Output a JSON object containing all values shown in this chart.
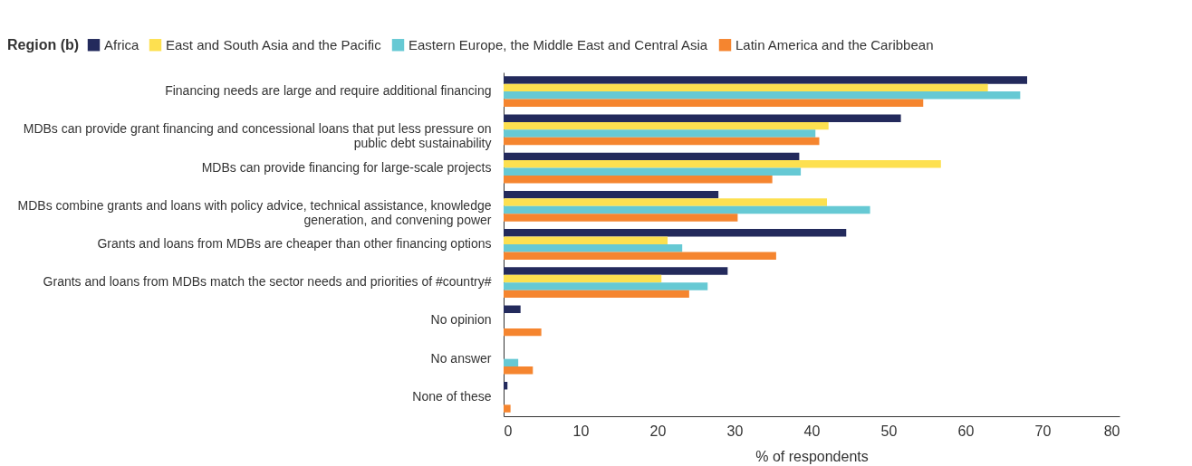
{
  "chart_data": {
    "type": "bar",
    "orientation": "horizontal",
    "legend_title": "Region (b)",
    "legend": "top left",
    "xlabel": "% of respondents",
    "xlim": [
      0,
      80
    ],
    "xticks": [
      0,
      10,
      20,
      30,
      40,
      50,
      60,
      70,
      80
    ],
    "grid": false,
    "categories": [
      "Financing needs are large and require additional financing",
      "MDBs can provide grant financing and concessional loans that put less pressure on public debt sustainability",
      "MDBs can provide financing for large-scale projects",
      "MDBs combine grants and loans with policy advice, technical assistance, knowledge generation, and convening power",
      "Grants and loans from MDBs are cheaper than other financing options",
      "Grants and loans from MDBs match the sector needs and priorities of #country#",
      "No opinion",
      "No answer",
      "None of these"
    ],
    "series": [
      {
        "name": "Africa",
        "color": "#232a5c",
        "values": [
          68,
          51.6,
          38.4,
          27.9,
          44.5,
          29.1,
          2.2,
          null,
          0.5
        ]
      },
      {
        "name": "East and South Asia and the Pacific",
        "color": "#fde050",
        "values": [
          62.9,
          42.2,
          56.8,
          42,
          21.3,
          20.5,
          null,
          null,
          null
        ]
      },
      {
        "name": "Eastern Europe, the Middle East and Central Asia",
        "color": "#66c9d4",
        "values": [
          67.1,
          40.5,
          38.6,
          47.6,
          23.2,
          26.5,
          null,
          1.9,
          null
        ]
      },
      {
        "name": "Latin America and the Caribbean",
        "color": "#f5852f",
        "values": [
          54.5,
          41,
          34.9,
          30.4,
          35.4,
          24.1,
          4.9,
          3.8,
          0.9
        ]
      }
    ]
  }
}
